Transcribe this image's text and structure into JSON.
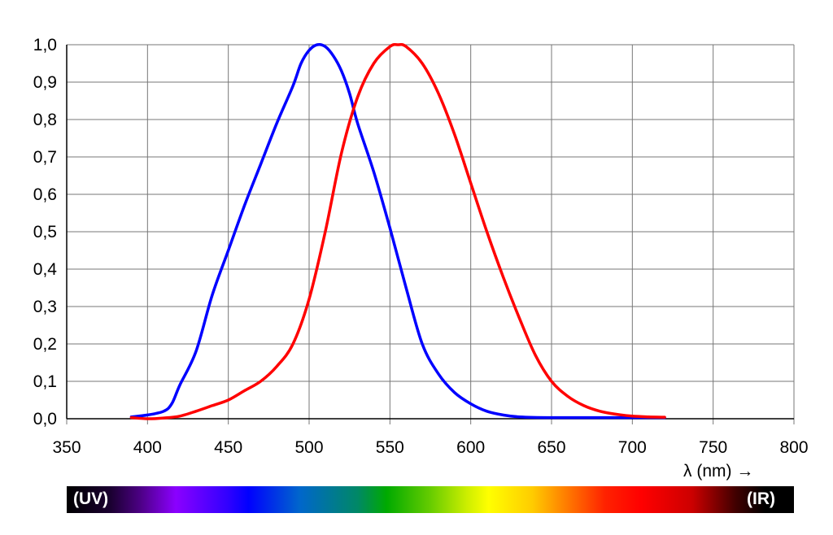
{
  "chart_data": {
    "type": "line",
    "xlabel": "λ (nm) →",
    "ylabel": "",
    "xlim": [
      350,
      800
    ],
    "ylim": [
      0.0,
      1.0
    ],
    "x_ticks": [
      350,
      400,
      450,
      500,
      550,
      600,
      650,
      700,
      750,
      800
    ],
    "y_ticks": [
      0.0,
      0.1,
      0.2,
      0.3,
      0.4,
      0.5,
      0.6,
      0.7,
      0.8,
      0.9,
      1.0
    ],
    "y_tick_labels": [
      "0,0",
      "0,1",
      "0,2",
      "0,3",
      "0,4",
      "0,5",
      "0,6",
      "0,7",
      "0,8",
      "0,9",
      "1,0"
    ],
    "grid": true,
    "series": [
      {
        "color": "#0000ff",
        "x": [
          390,
          400,
          410,
          415,
          420,
          430,
          440,
          450,
          460,
          470,
          480,
          490,
          495,
          500,
          505,
          510,
          515,
          520,
          525,
          530,
          540,
          550,
          560,
          570,
          580,
          590,
          600,
          610,
          620,
          630,
          650,
          700,
          720
        ],
        "y": [
          0.005,
          0.01,
          0.02,
          0.04,
          0.09,
          0.18,
          0.33,
          0.45,
          0.57,
          0.68,
          0.79,
          0.89,
          0.95,
          0.985,
          1.0,
          0.995,
          0.97,
          0.93,
          0.87,
          0.79,
          0.66,
          0.51,
          0.35,
          0.2,
          0.12,
          0.07,
          0.04,
          0.02,
          0.01,
          0.005,
          0.003,
          0.003,
          0.003
        ]
      },
      {
        "color": "#ff0000",
        "x": [
          390,
          400,
          410,
          420,
          430,
          440,
          450,
          460,
          470,
          480,
          490,
          500,
          510,
          520,
          530,
          540,
          550,
          555,
          560,
          570,
          580,
          590,
          600,
          610,
          620,
          630,
          640,
          650,
          660,
          670,
          680,
          690,
          700,
          710,
          720
        ],
        "y": [
          0.003,
          0.0,
          0.002,
          0.007,
          0.02,
          0.035,
          0.05,
          0.075,
          0.1,
          0.14,
          0.2,
          0.32,
          0.5,
          0.71,
          0.86,
          0.95,
          0.995,
          1.0,
          0.995,
          0.95,
          0.87,
          0.76,
          0.63,
          0.5,
          0.38,
          0.27,
          0.17,
          0.1,
          0.06,
          0.035,
          0.02,
          0.012,
          0.007,
          0.005,
          0.004
        ]
      }
    ],
    "spectrum_bar": {
      "left_label": "(UV)",
      "right_label": "(IR)"
    }
  }
}
